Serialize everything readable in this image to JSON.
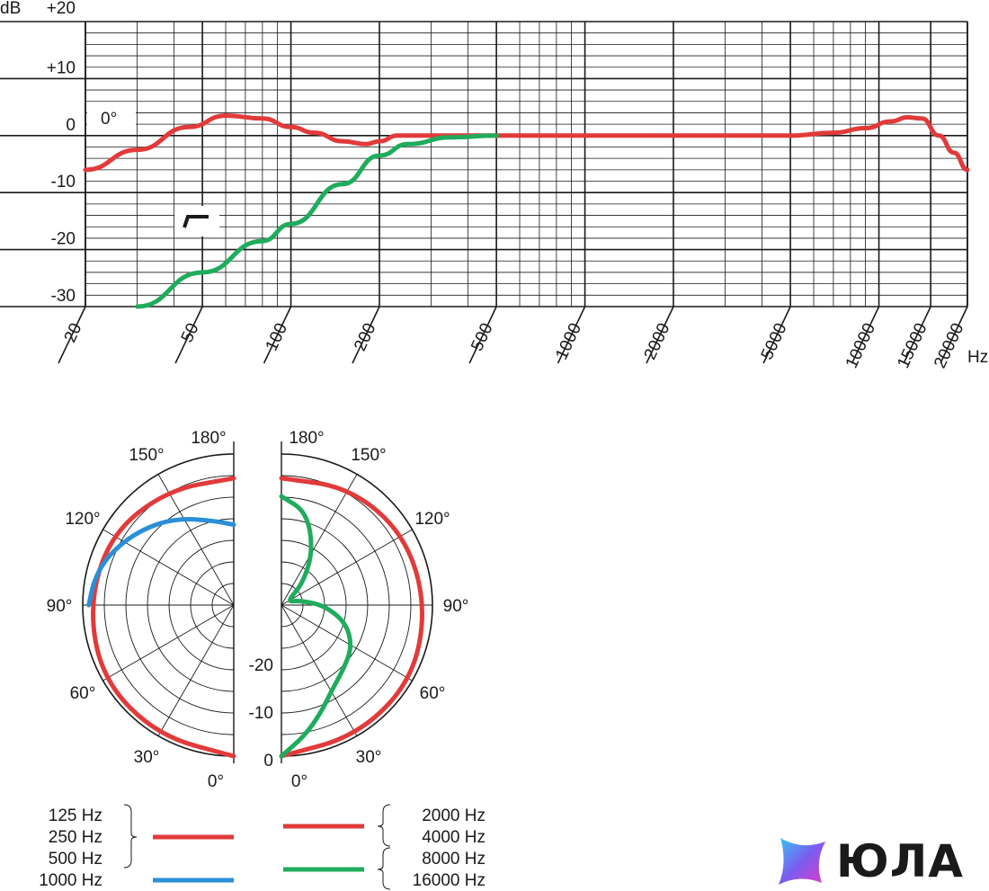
{
  "chart_data": [
    {
      "type": "line",
      "title": "",
      "xlabel": "Hz",
      "ylabel": "dB",
      "xscale": "log",
      "xlim": [
        20,
        20000
      ],
      "ylim": [
        -30,
        20
      ],
      "grid": true,
      "x_ticks": [
        "20",
        "50",
        "100",
        "200",
        "500",
        "1000",
        "2000",
        "5000",
        "10000",
        "15000",
        "20000"
      ],
      "y_ticks": [
        "+20",
        "+10",
        "0",
        "-10",
        "-20",
        "-30"
      ],
      "annotations": [
        "0°"
      ],
      "series": [
        {
          "color": "#e23a3a",
          "x": [
            20,
            30,
            45,
            60,
            80,
            100,
            120,
            150,
            180,
            200,
            230,
            300,
            500,
            1000,
            2000,
            4000,
            5000,
            7000,
            9000,
            11000,
            12500,
            14000,
            16000,
            18000,
            20000
          ],
          "y": [
            -6,
            -2.5,
            1.5,
            3.5,
            3,
            1.5,
            0.5,
            -1,
            -1.5,
            -1,
            0,
            0,
            0,
            0,
            0,
            0,
            0,
            0.5,
            1.3,
            2.5,
            3.2,
            3,
            0,
            -3,
            -6
          ]
        },
        {
          "color": "#1fac5c",
          "x": [
            30,
            50,
            80,
            100,
            150,
            200,
            250,
            350,
            500
          ],
          "y": [
            -30,
            -24,
            -18.5,
            -15.5,
            -8.5,
            -3.5,
            -1.5,
            -0.3,
            0
          ]
        }
      ]
    },
    {
      "type": "polar",
      "scale_labels": [
        "-20",
        "-10",
        "0"
      ],
      "left_half": {
        "angle_labels": [
          "180°",
          "150°",
          "120°",
          "90°",
          "60°",
          "30°",
          "0°"
        ],
        "series": [
          {
            "color": "#e23a3a",
            "angles_deg": [
              0,
              30,
              60,
              90,
              120,
              150,
              180
            ],
            "values_db": [
              0,
              0,
              0,
              -1,
              -1.5,
              -3,
              -4
            ]
          },
          {
            "color": "#2a8fd6",
            "angles_deg": [
              90,
              100,
              110,
              120,
              130,
              140,
              150,
              160,
              170,
              180
            ],
            "values_db": [
              -1,
              -1.5,
              -2.5,
              -4,
              -5.5,
              -7,
              -8.5,
              -10,
              -11,
              -11.7
            ]
          }
        ]
      },
      "right_half": {
        "angle_labels": [
          "180°",
          "150°",
          "120°",
          "90°",
          "60°",
          "30°",
          "0°"
        ],
        "series": [
          {
            "color": "#e23a3a",
            "angles_deg": [
              0,
              30,
              60,
              90,
              120,
              150,
              180
            ],
            "values_db": [
              0,
              0,
              0,
              -1,
              -1.5,
              -2.5,
              -4
            ]
          },
          {
            "color": "#1fac5c",
            "angles_deg": [
              0,
              10,
              20,
              30,
              45,
              60,
              75,
              90,
              105,
              120,
              135,
              150,
              165,
              180
            ],
            "values_db": [
              0,
              -3,
              -6,
              -8.5,
              -10.3,
              -11.5,
              -14,
              -18,
              -22,
              -24,
              -20,
              -14.5,
              -9,
              -7
            ]
          }
        ]
      },
      "legend": {
        "left": [
          {
            "labels": [
              "125 Hz",
              "250 Hz",
              "500 Hz"
            ],
            "color": "#e23a3a"
          },
          {
            "labels": [
              "1000 Hz"
            ],
            "color": "#2a8fd6"
          }
        ],
        "right": [
          {
            "labels": [
              "2000 Hz",
              "4000 Hz"
            ],
            "color": "#e23a3a"
          },
          {
            "labels": [
              "8000 Hz",
              "16000 Hz"
            ],
            "color": "#1fac5c"
          }
        ]
      }
    }
  ],
  "brand": {
    "name": "ЮЛА",
    "icon": "star-gradient-icon"
  }
}
